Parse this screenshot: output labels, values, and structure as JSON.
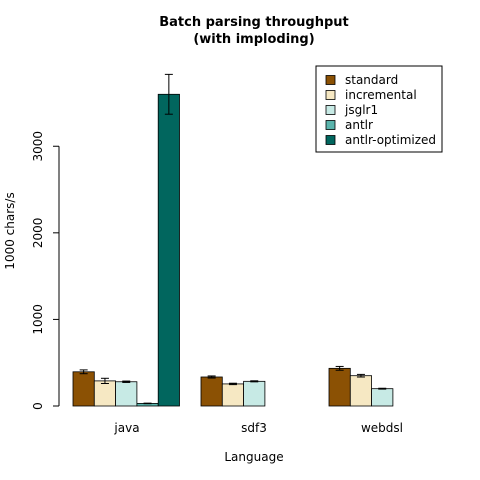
{
  "chart_data": {
    "type": "bar",
    "title": "Batch parsing throughput\n(with imploding)",
    "xlabel": "Language",
    "ylabel": "1000 chars/s",
    "ylim": [
      0,
      4100
    ],
    "yticks": [
      0,
      1000,
      2000,
      3000
    ],
    "grid": false,
    "legend_position": "top-right",
    "categories": [
      "java",
      "sdf3",
      "webdsl"
    ],
    "series": [
      {
        "name": "standard",
        "color": "#8b5104",
        "values": [
          395,
          335,
          435
        ],
        "errors": [
          22,
          12,
          22
        ]
      },
      {
        "name": "incremental",
        "color": "#f6e8c3",
        "values": [
          290,
          255,
          350
        ],
        "errors": [
          30,
          8,
          15
        ]
      },
      {
        "name": "jsglr1",
        "color": "#c7eae5",
        "values": [
          280,
          285,
          200
        ],
        "errors": [
          8,
          6,
          5
        ]
      },
      {
        "name": "antlr",
        "color": "#5ab4ac",
        "values": [
          30,
          null,
          null
        ],
        "errors": [
          3,
          null,
          null
        ]
      },
      {
        "name": "antlr-optimized",
        "color": "#01665e",
        "values": [
          3600,
          null,
          null
        ],
        "errors": [
          230,
          null,
          null
        ]
      }
    ]
  }
}
